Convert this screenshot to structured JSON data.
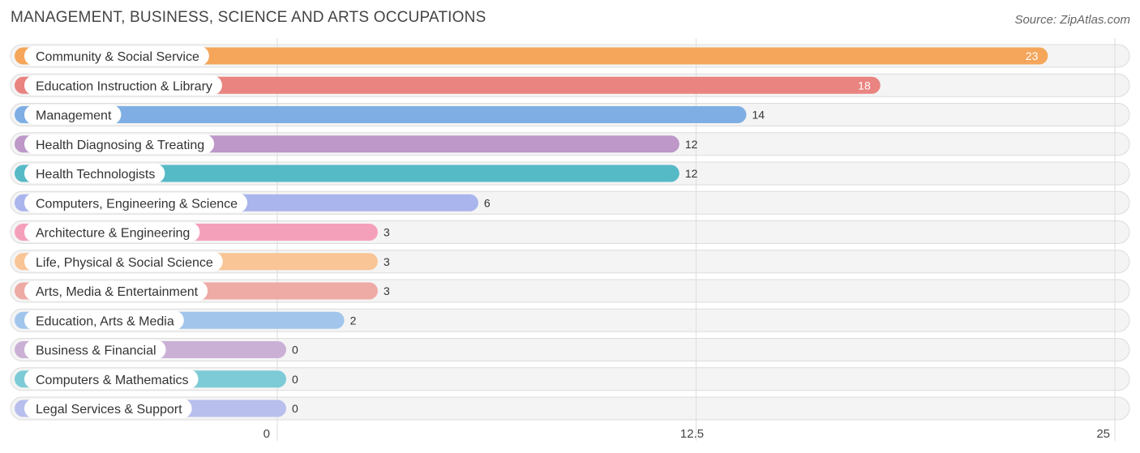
{
  "header": {
    "title": "MANAGEMENT, BUSINESS, SCIENCE AND ARTS OCCUPATIONS",
    "source": "Source: ZipAtlas.com"
  },
  "chart_data": {
    "type": "bar",
    "orientation": "horizontal",
    "title": "MANAGEMENT, BUSINESS, SCIENCE AND ARTS OCCUPATIONS",
    "xlabel": "",
    "ylabel": "",
    "xlim": [
      0,
      25
    ],
    "ticks": [
      0,
      12.5,
      25
    ],
    "tick_labels": [
      "0",
      "12.5",
      "25"
    ],
    "grid": true,
    "categories": [
      "Community & Social Service",
      "Education Instruction & Library",
      "Management",
      "Health Diagnosing & Treating",
      "Health Technologists",
      "Computers, Engineering & Science",
      "Architecture & Engineering",
      "Life, Physical & Social Science",
      "Arts, Media & Entertainment",
      "Education, Arts & Media",
      "Business & Financial",
      "Computers & Mathematics",
      "Legal Services & Support"
    ],
    "values": [
      23,
      18,
      14,
      12,
      12,
      6,
      3,
      3,
      3,
      2,
      0,
      0,
      0
    ],
    "colors": [
      "#f5a65b",
      "#e98480",
      "#7eaee3",
      "#bd98c8",
      "#56b9c6",
      "#a9b5ec",
      "#f5a0bb",
      "#f9c596",
      "#eeaaa5",
      "#a2c5ec",
      "#cbb0d6",
      "#7dcbd6",
      "#b8bfec"
    ]
  }
}
